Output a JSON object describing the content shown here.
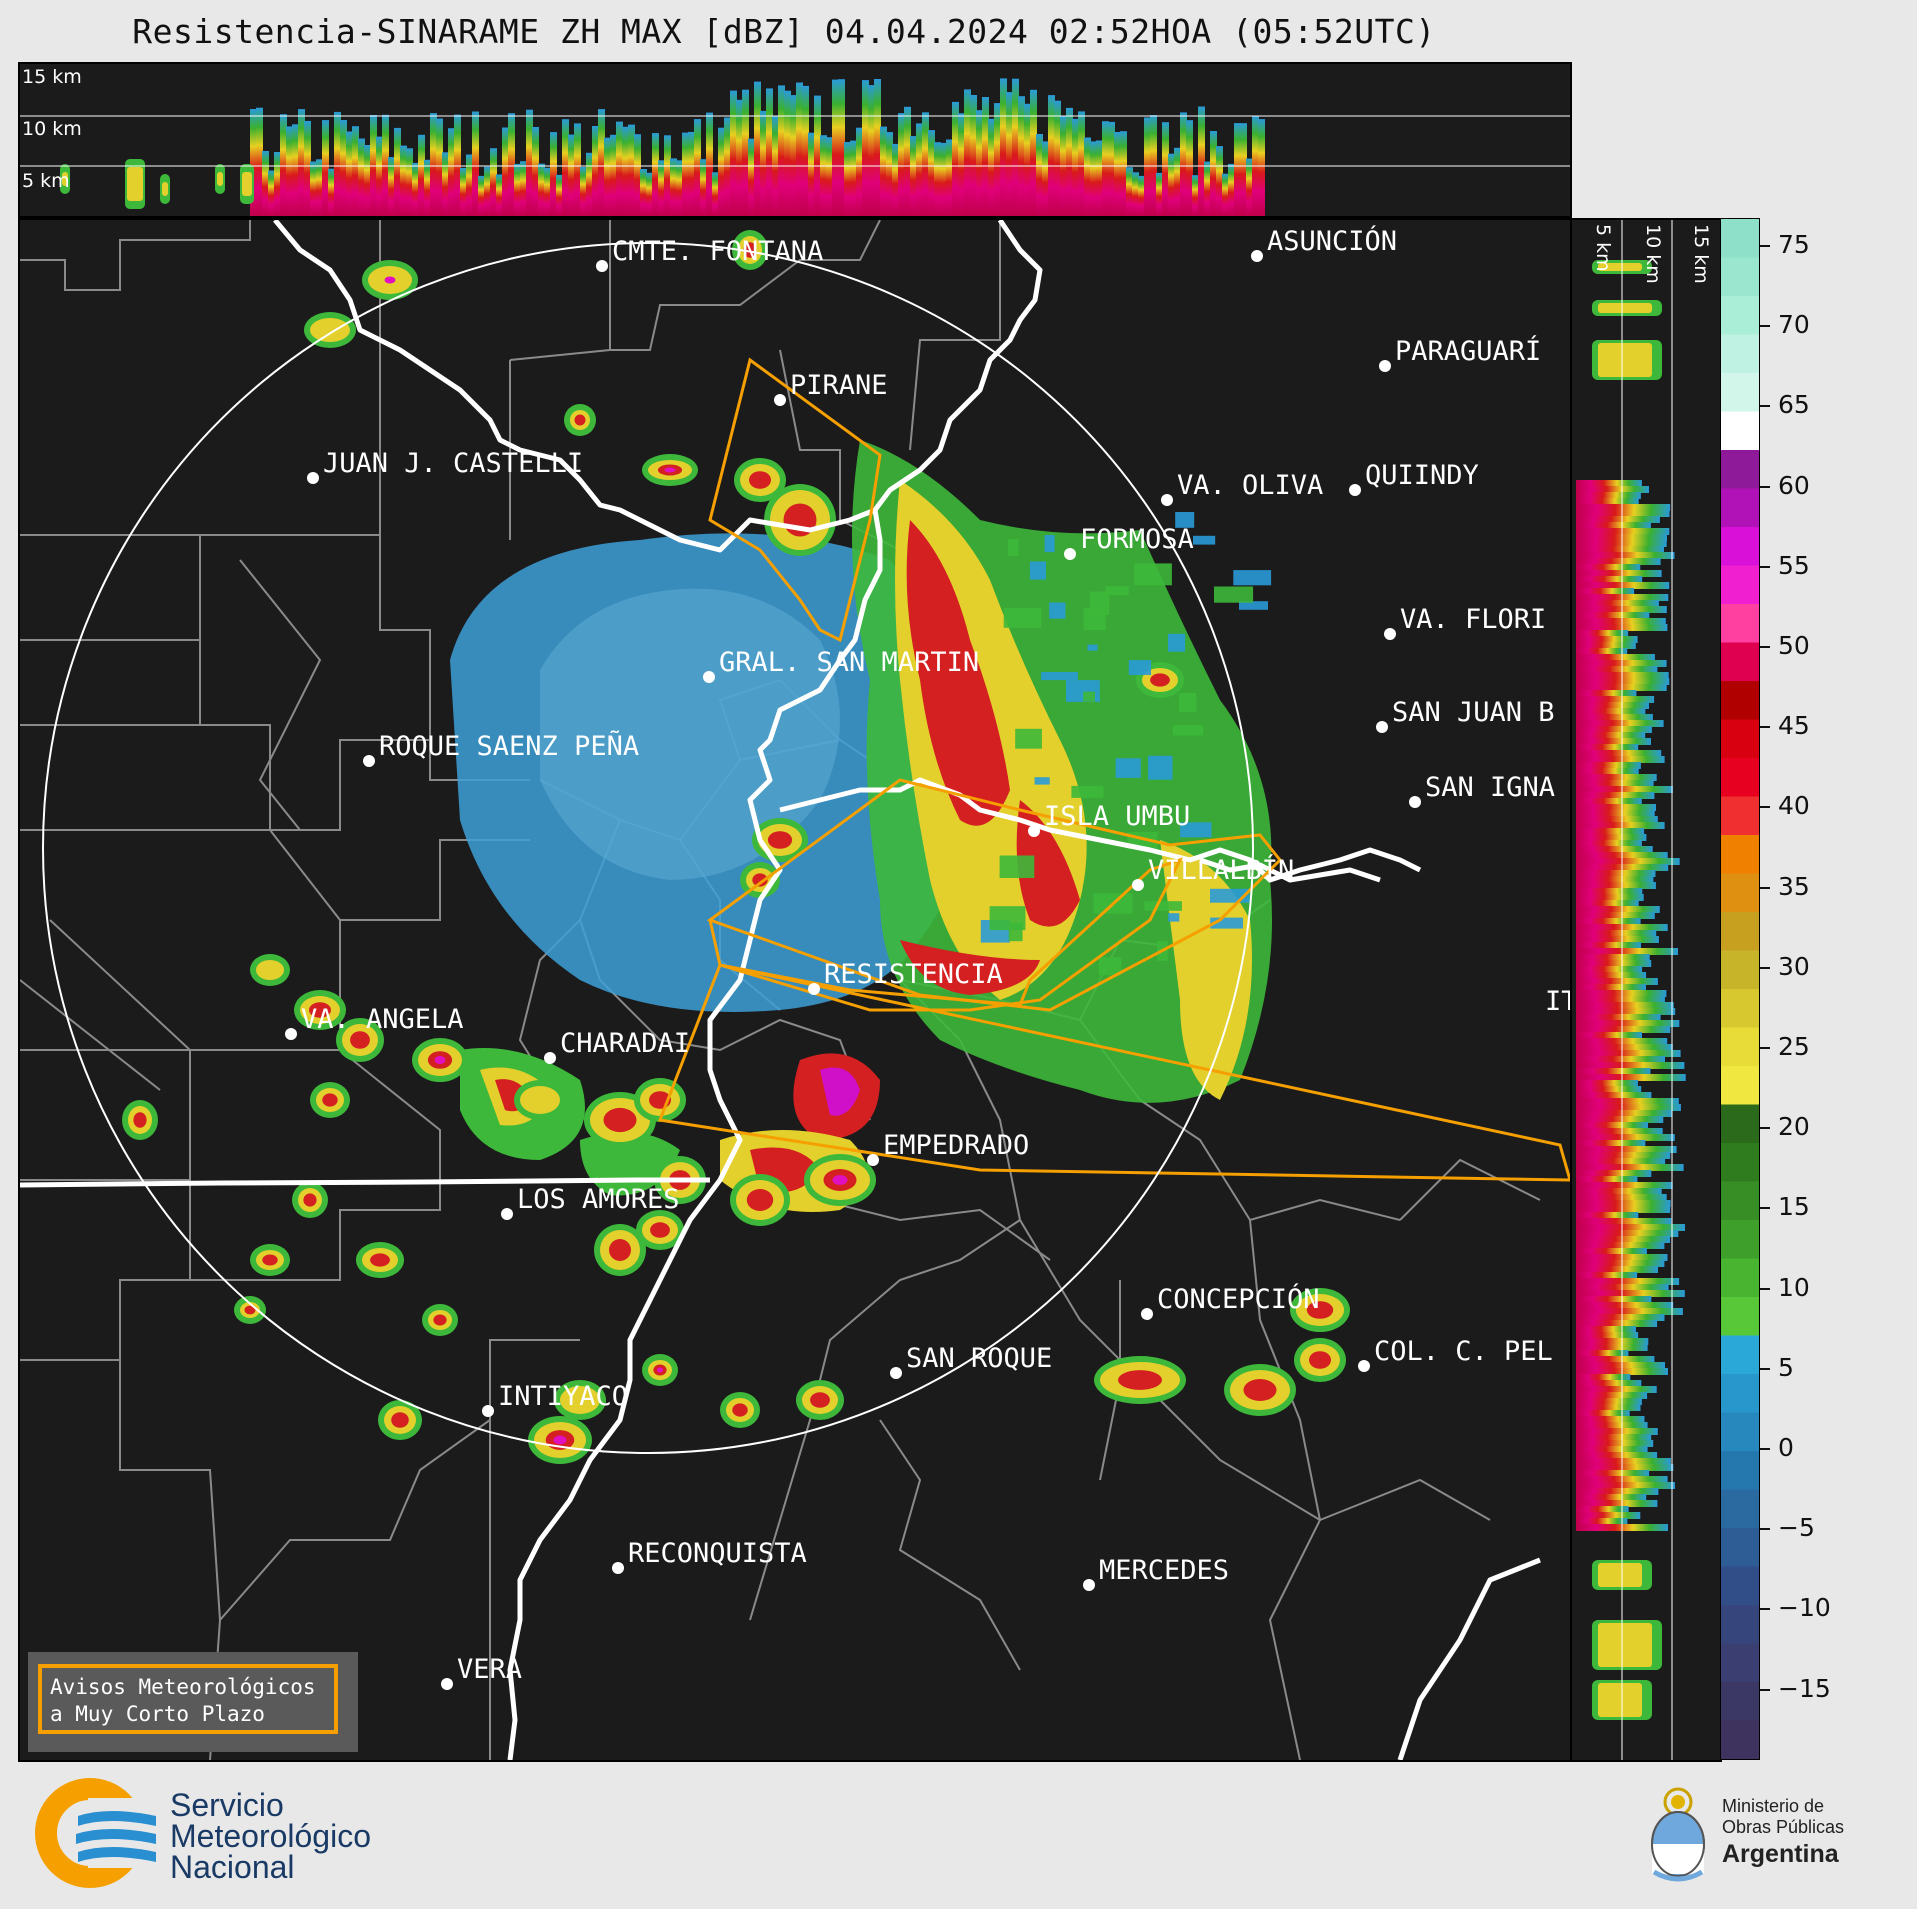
{
  "title": "Resistencia-SINARAME ZH MAX [dBZ] 04.04.2024 02:52HOA (05:52UTC)",
  "top_panel_levels": [
    "15 km",
    "10 km",
    "5 km"
  ],
  "side_panel_levels": [
    "5 km",
    "10 km",
    "15 km"
  ],
  "colorbar": {
    "unit": "dBZ",
    "ticks": [
      "75",
      "70",
      "65",
      "60",
      "55",
      "50",
      "45",
      "40",
      "35",
      "30",
      "25",
      "20",
      "15",
      "10",
      "5",
      "0",
      "−5",
      "−10",
      "−15"
    ]
  },
  "cities": [
    {
      "name": "CMTE. FONTANA"
    },
    {
      "name": "ASUNCIÓN"
    },
    {
      "name": "PIRANE"
    },
    {
      "name": "PARAGUARÍ"
    },
    {
      "name": "JUAN J. CASTELLI"
    },
    {
      "name": "VA. OLIVA"
    },
    {
      "name": "QUIINDY"
    },
    {
      "name": "FORMOSA"
    },
    {
      "name": "VA. FLORI"
    },
    {
      "name": "GRAL. SAN MARTIN"
    },
    {
      "name": "SAN JUAN B"
    },
    {
      "name": "ROQUE SAENZ PEÑA"
    },
    {
      "name": "SAN IGNA"
    },
    {
      "name": "ISLA UMBU"
    },
    {
      "name": "VILLALBÍN"
    },
    {
      "name": "RESISTENCIA"
    },
    {
      "name": "VA. ANGELA"
    },
    {
      "name": "CHARADAI"
    },
    {
      "name": "EMPEDRADO"
    },
    {
      "name": "LOS AMORES"
    },
    {
      "name": "CONCEPCIÓN"
    },
    {
      "name": "SAN ROQUE"
    },
    {
      "name": "COL. C. PEL"
    },
    {
      "name": "INTIYACO"
    },
    {
      "name": "RECONQUISTA"
    },
    {
      "name": "MERCEDES"
    },
    {
      "name": "VERA"
    },
    {
      "name": "IT"
    }
  ],
  "warning_box": {
    "line1": "Avisos Meteorológicos",
    "line2": "a Muy Corto Plazo"
  },
  "logo_smn": {
    "line1": "Servicio",
    "line2": "Meteorológico",
    "line3": "Nacional"
  },
  "logo_ministry": {
    "line1": "Ministerio de",
    "line2": "Obras Públicas",
    "line3": "Argentina"
  },
  "colors": {
    "background": "#1b1b1b",
    "warning": "#f5a000",
    "range_ring": "#ffffff"
  }
}
